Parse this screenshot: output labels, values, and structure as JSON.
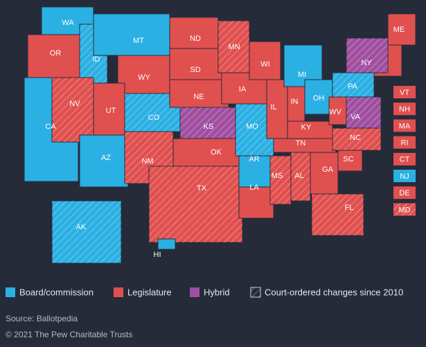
{
  "legend": [
    {
      "label": "Board/commission",
      "color": "#2bb0e3"
    },
    {
      "label": "Legislature",
      "color": "#e0504f"
    },
    {
      "label": "Hybrid",
      "color": "#a04fa0"
    },
    {
      "label": "Court-ordered changes since 2010",
      "hatched": true
    }
  ],
  "states": [
    {
      "label": "WA",
      "category": "Board/commission",
      "hatched": false
    },
    {
      "label": "OR",
      "category": "Legislature",
      "hatched": false
    },
    {
      "label": "CA",
      "category": "Board/commission",
      "hatched": false
    },
    {
      "label": "ID",
      "category": "Board/commission",
      "hatched": true
    },
    {
      "label": "NV",
      "category": "Legislature",
      "hatched": true
    },
    {
      "label": "MT",
      "category": "Board/commission",
      "hatched": false
    },
    {
      "label": "WY",
      "category": "Legislature",
      "hatched": false
    },
    {
      "label": "UT",
      "category": "Legislature",
      "hatched": false
    },
    {
      "label": "AZ",
      "category": "Board/commission",
      "hatched": false
    },
    {
      "label": "CO",
      "category": "Board/commission",
      "hatched": true
    },
    {
      "label": "NM",
      "category": "Legislature",
      "hatched": true
    },
    {
      "label": "ND",
      "category": "Legislature",
      "hatched": false
    },
    {
      "label": "SD",
      "category": "Legislature",
      "hatched": false
    },
    {
      "label": "NE",
      "category": "Legislature",
      "hatched": false
    },
    {
      "label": "KS",
      "category": "Hybrid",
      "hatched": true
    },
    {
      "label": "OK",
      "category": "Legislature",
      "hatched": false
    },
    {
      "label": "TX",
      "category": "Legislature",
      "hatched": true
    },
    {
      "label": "MN",
      "category": "Legislature",
      "hatched": true
    },
    {
      "label": "IA",
      "category": "Legislature",
      "hatched": false
    },
    {
      "label": "MO",
      "category": "Board/commission",
      "hatched": true
    },
    {
      "label": "AR",
      "category": "Board/commission",
      "hatched": false
    },
    {
      "label": "LA",
      "category": "Legislature",
      "hatched": false
    },
    {
      "label": "WI",
      "category": "Legislature",
      "hatched": false
    },
    {
      "label": "IL",
      "category": "Legislature",
      "hatched": false
    },
    {
      "label": "MS",
      "category": "Legislature",
      "hatched": true
    },
    {
      "label": "MI",
      "category": "Board/commission",
      "hatched": false
    },
    {
      "label": "IN",
      "category": "Legislature",
      "hatched": false
    },
    {
      "label": "KY",
      "category": "Legislature",
      "hatched": false
    },
    {
      "label": "TN",
      "category": "Legislature",
      "hatched": false
    },
    {
      "label": "AL",
      "category": "Legislature",
      "hatched": true
    },
    {
      "label": "OH",
      "category": "Board/commission",
      "hatched": false
    },
    {
      "label": "WV",
      "category": "Legislature",
      "hatched": false
    },
    {
      "label": "GA",
      "category": "Legislature",
      "hatched": false
    },
    {
      "label": "FL",
      "category": "Legislature",
      "hatched": true
    },
    {
      "label": "PA",
      "category": "Board/commission",
      "hatched": true
    },
    {
      "label": "VA",
      "category": "Hybrid",
      "hatched": true
    },
    {
      "label": "NC",
      "category": "Legislature",
      "hatched": true
    },
    {
      "label": "SC",
      "category": "Legislature",
      "hatched": false
    },
    {
      "label": "NY",
      "category": "Hybrid",
      "hatched": true
    },
    {
      "label": "ME",
      "category": "Legislature",
      "hatched": false
    },
    {
      "label": "AK",
      "category": "Board/commission",
      "hatched": true
    },
    {
      "label": "HI",
      "category": "Board/commission",
      "hatched": false
    }
  ],
  "small_states": [
    {
      "label": "VT",
      "category": "Legislature",
      "hatched": false
    },
    {
      "label": "NH",
      "category": "Legislature",
      "hatched": false
    },
    {
      "label": "MA",
      "category": "Legislature",
      "hatched": false
    },
    {
      "label": "RI",
      "category": "Legislature",
      "hatched": false
    },
    {
      "label": "CT",
      "category": "Legislature",
      "hatched": false
    },
    {
      "label": "NJ",
      "category": "Board/commission",
      "hatched": false
    },
    {
      "label": "DE",
      "category": "Legislature",
      "hatched": false
    },
    {
      "label": "MD",
      "category": "Legislature",
      "hatched": true
    }
  ],
  "source": "Source: Ballotpedia",
  "copyright": "© 2021 The Pew Charitable Trusts"
}
